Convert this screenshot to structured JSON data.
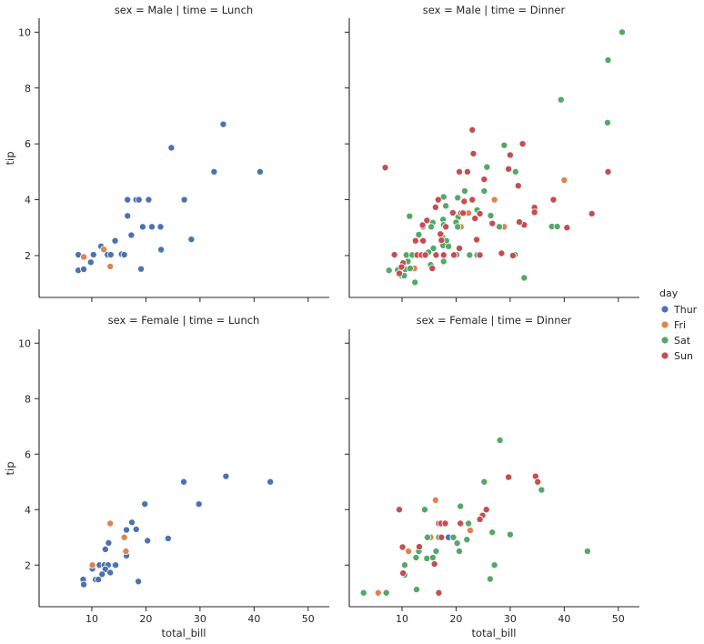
{
  "chart_data": {
    "type": "scatter",
    "xlabel": "total_bill",
    "ylabel": "tip",
    "xlim": [
      0.25,
      53.9
    ],
    "ylim": [
      0.5,
      10.5
    ],
    "x_ticks": [
      10,
      20,
      30,
      40,
      50
    ],
    "y_ticks": [
      2,
      4,
      6,
      8,
      10
    ],
    "grid": false,
    "legend": {
      "title": "day",
      "placement": "right",
      "entries": [
        "Thur",
        "Fri",
        "Sat",
        "Sun"
      ]
    },
    "colors": {
      "Thur": "#4c72b0",
      "Fri": "#dd8452",
      "Sat": "#55a868",
      "Sun": "#c44e52"
    },
    "facets": [
      {
        "title": "sex = Male | time = Lunch",
        "series": [
          {
            "name": "Thur",
            "points": [
              [
                34.3,
                6.7
              ],
              [
                24.7,
                5.86
              ],
              [
                32.6,
                5.0
              ],
              [
                41.1,
                5.0
              ],
              [
                16.6,
                4.0
              ],
              [
                18.2,
                4.0
              ],
              [
                18.7,
                4.0
              ],
              [
                20.5,
                4.0
              ],
              [
                27.1,
                4.0
              ],
              [
                16.6,
                3.42
              ],
              [
                19.4,
                3.03
              ],
              [
                21.1,
                3.03
              ],
              [
                22.7,
                3.03
              ],
              [
                17.3,
                2.73
              ],
              [
                28.4,
                2.58
              ],
              [
                14.3,
                2.53
              ],
              [
                11.7,
                2.33
              ],
              [
                22.8,
                2.21
              ],
              [
                7.5,
                2.03
              ],
              [
                10.3,
                2.03
              ],
              [
                12.9,
                2.03
              ],
              [
                13.5,
                2.03
              ],
              [
                15.5,
                2.05
              ],
              [
                16.0,
                2.03
              ],
              [
                9.8,
                1.76
              ],
              [
                19.1,
                1.52
              ],
              [
                7.5,
                1.47
              ],
              [
                8.5,
                1.51
              ]
            ]
          },
          {
            "name": "Fri",
            "points": [
              [
                12.2,
                2.22
              ],
              [
                8.5,
                1.95
              ],
              [
                13.4,
                1.61
              ]
            ]
          },
          {
            "name": "Sat",
            "points": []
          },
          {
            "name": "Sun",
            "points": []
          }
        ]
      },
      {
        "title": "sex = Male | time = Dinner",
        "series": [
          {
            "name": "Thur",
            "points": []
          },
          {
            "name": "Fri",
            "points": [
              [
                40.0,
                4.7
              ],
              [
                27.1,
                4.0
              ],
              [
                22.3,
                3.52
              ],
              [
                20.9,
                3.03
              ],
              [
                28.9,
                3.03
              ],
              [
                12.3,
                1.54
              ]
            ]
          },
          {
            "name": "Sat",
            "points": [
              [
                50.7,
                10
              ],
              [
                48.1,
                9
              ],
              [
                39.4,
                7.58
              ],
              [
                48,
                6.76
              ],
              [
                37.7,
                3.04
              ],
              [
                38.7,
                3.04
              ],
              [
                32.6,
                1.2
              ],
              [
                31.0,
                5.0
              ],
              [
                28.9,
                5.95
              ],
              [
                25.7,
                5.17
              ],
              [
                21.6,
                4.31
              ],
              [
                25.2,
                4.31
              ],
              [
                17.7,
                4.1
              ],
              [
                20.3,
                4.07
              ],
              [
                18.1,
                3.78
              ],
              [
                23.9,
                3.63
              ],
              [
                11.4,
                3.41
              ],
              [
                26.4,
                3.43
              ],
              [
                20.4,
                3.38
              ],
              [
                17.6,
                3.29
              ],
              [
                15.7,
                3.18
              ],
              [
                20.0,
                3.19
              ],
              [
                17.7,
                3.1
              ],
              [
                13.9,
                3.03
              ],
              [
                15.4,
                3.03
              ],
              [
                20.3,
                3.03
              ],
              [
                28.0,
                3.03
              ],
              [
                13.1,
                2.75
              ],
              [
                17.5,
                2.65
              ],
              [
                18.2,
                2.53
              ],
              [
                17.6,
                2.36
              ],
              [
                18.6,
                2.33
              ],
              [
                15.8,
                2.26
              ],
              [
                14.9,
                2.12
              ],
              [
                10.8,
                2.02
              ],
              [
                11.9,
                2.02
              ],
              [
                20.1,
                2.03
              ],
              [
                22.5,
                2.02
              ],
              [
                23.9,
                2.02
              ],
              [
                30.9,
                2.03
              ],
              [
                11.1,
                1.79
              ],
              [
                17.7,
                1.79
              ],
              [
                15.3,
                1.67
              ],
              [
                10.6,
                1.51
              ],
              [
                11.5,
                1.54
              ],
              [
                9.2,
                1.48
              ],
              [
                7.6,
                1.47
              ],
              [
                9.9,
                1.28
              ],
              [
                10.4,
                1.28
              ],
              [
                12.4,
                1.04
              ]
            ]
          },
          {
            "name": "Sun",
            "points": [
              [
                23.0,
                6.5
              ],
              [
                32.3,
                6.0
              ],
              [
                6.9,
                5.15
              ],
              [
                48.1,
                5.0
              ],
              [
                45.1,
                3.5
              ],
              [
                38.0,
                4.0
              ],
              [
                40.5,
                3.0
              ],
              [
                34.5,
                3.72
              ],
              [
                34.5,
                3.55
              ],
              [
                32.6,
                3.1
              ],
              [
                31.7,
                3.2
              ],
              [
                30.0,
                5.6
              ],
              [
                29.7,
                5.1
              ],
              [
                31.5,
                4.5
              ],
              [
                23.2,
                5.65
              ],
              [
                20.6,
                5.0
              ],
              [
                22.1,
                5.0
              ],
              [
                25.2,
                4.73
              ],
              [
                16.7,
                4.0
              ],
              [
                21.5,
                3.94
              ],
              [
                23.0,
                4.0
              ],
              [
                16.2,
                3.73
              ],
              [
                19.4,
                3.53
              ],
              [
                20.9,
                3.52
              ],
              [
                21.3,
                3.52
              ],
              [
                24.4,
                3.5
              ],
              [
                23.5,
                3.33
              ],
              [
                14.6,
                3.26
              ],
              [
                26.7,
                3.15
              ],
              [
                13.8,
                3.09
              ],
              [
                18.1,
                3.03
              ],
              [
                17.1,
                2.77
              ],
              [
                12.5,
                2.53
              ],
              [
                13.9,
                2.53
              ],
              [
                17.3,
                2.55
              ],
              [
                23.8,
                2.57
              ],
              [
                20.6,
                2.26
              ],
              [
                8.6,
                2.03
              ],
              [
                12.8,
                2.02
              ],
              [
                13.6,
                2.02
              ],
              [
                14.3,
                2.02
              ],
              [
                16.3,
                2.02
              ],
              [
                17.7,
                2.02
              ],
              [
                19.6,
                2.02
              ],
              [
                24.4,
                2.02
              ],
              [
                28.4,
                2.08
              ],
              [
                10.2,
                1.73
              ],
              [
                9.9,
                1.59
              ],
              [
                15.6,
                1.54
              ],
              [
                9.5,
                1.36
              ],
              [
                30.5,
                2.0
              ]
            ]
          }
        ]
      },
      {
        "title": "sex = Female | time = Lunch",
        "series": [
          {
            "name": "Thur",
            "points": [
              [
                34.8,
                5.2
              ],
              [
                27.0,
                5.0
              ],
              [
                43.0,
                5.0
              ],
              [
                19.8,
                4.2
              ],
              [
                29.8,
                4.2
              ],
              [
                17.4,
                3.54
              ],
              [
                16.4,
                3.27
              ],
              [
                18.2,
                3.29
              ],
              [
                20.3,
                2.88
              ],
              [
                24.1,
                2.96
              ],
              [
                13.1,
                2.8
              ],
              [
                12.5,
                2.57
              ],
              [
                16.4,
                2.34
              ],
              [
                11.4,
                2.0
              ],
              [
                12.3,
                2.0
              ],
              [
                13.0,
                2.0
              ],
              [
                14.2,
                2.0
              ],
              [
                14.4,
                2.0
              ],
              [
                10.1,
                1.87
              ],
              [
                12.5,
                1.85
              ],
              [
                13.4,
                1.73
              ],
              [
                11.9,
                1.67
              ],
              [
                8.4,
                1.48
              ],
              [
                10.7,
                1.48
              ],
              [
                11.2,
                1.48
              ],
              [
                18.6,
                1.41
              ],
              [
                8.5,
                1.3
              ]
            ]
          },
          {
            "name": "Fri",
            "points": [
              [
                13.4,
                3.5
              ],
              [
                16.0,
                3.0
              ],
              [
                16.3,
                2.5
              ],
              [
                10.1,
                2.0
              ]
            ]
          },
          {
            "name": "Sat",
            "points": []
          },
          {
            "name": "Sun",
            "points": []
          }
        ]
      },
      {
        "title": "sex = Female | time = Dinner",
        "series": [
          {
            "name": "Thur",
            "points": [
              [
                18.6,
                3.0
              ]
            ]
          },
          {
            "name": "Fri",
            "points": [
              [
                16.2,
                4.34
              ],
              [
                22.6,
                3.25
              ],
              [
                15.3,
                3.0
              ],
              [
                11.2,
                2.5
              ],
              [
                5.6,
                1.0
              ]
            ]
          },
          {
            "name": "Sat",
            "points": [
              [
                28.1,
                6.5
              ],
              [
                35.8,
                4.71
              ],
              [
                25.2,
                5.0
              ],
              [
                14.2,
                4.0
              ],
              [
                20.8,
                4.12
              ],
              [
                22.3,
                3.5
              ],
              [
                26.7,
                3.18
              ],
              [
                30.0,
                3.1
              ],
              [
                14.7,
                3.0
              ],
              [
                16.8,
                3.0
              ],
              [
                19.5,
                3.0
              ],
              [
                22.0,
                2.92
              ],
              [
                20.2,
                2.79
              ],
              [
                13.1,
                2.5
              ],
              [
                16.3,
                2.5
              ],
              [
                20.6,
                2.5
              ],
              [
                12.6,
                2.27
              ],
              [
                14.6,
                2.24
              ],
              [
                15.7,
                2.27
              ],
              [
                27.1,
                2.0
              ],
              [
                10.5,
                2.0
              ],
              [
                10.5,
                1.65
              ],
              [
                26.3,
                1.5
              ],
              [
                12.7,
                1.12
              ],
              [
                2.9,
                1.0
              ],
              [
                7.1,
                1.0
              ],
              [
                44.3,
                2.5
              ]
            ]
          },
          {
            "name": "Sun",
            "points": [
              [
                29.7,
                5.17
              ],
              [
                34.7,
                5.2
              ],
              [
                35.1,
                5.0
              ],
              [
                9.5,
                4.0
              ],
              [
                25.6,
                4.0
              ],
              [
                24.9,
                3.79
              ],
              [
                24.4,
                3.65
              ],
              [
                16.8,
                3.5
              ],
              [
                17.2,
                3.5
              ],
              [
                18.0,
                3.5
              ],
              [
                20.8,
                3.5
              ],
              [
                17.3,
                3.0
              ],
              [
                10.1,
                2.65
              ],
              [
                13.2,
                2.66
              ],
              [
                16.0,
                2.04
              ],
              [
                10.2,
                1.71
              ],
              [
                16.8,
                1.0
              ]
            ]
          }
        ]
      }
    ]
  }
}
